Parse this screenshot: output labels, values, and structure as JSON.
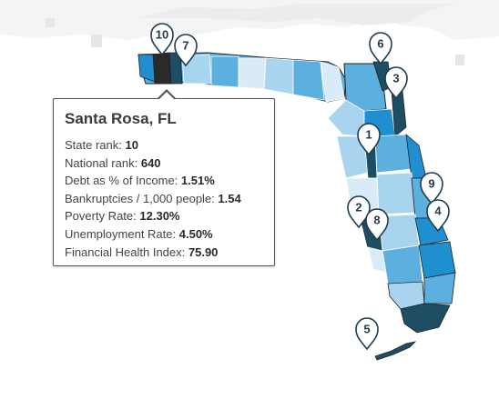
{
  "legend_colors": {
    "lightest": "#d8ebf7",
    "light": "#a9d4ef",
    "medium": "#5cb0e0",
    "dark": "#1f8fd0",
    "darkest": "#1d4e63",
    "black": "#2a2a2a",
    "neighbor_gray": "#ececec",
    "pin_text": "#1f3b4d"
  },
  "pins": [
    {
      "label": "10",
      "icon": "map-pin-icon"
    },
    {
      "label": "7",
      "icon": "map-pin-icon"
    },
    {
      "label": "6",
      "icon": "map-pin-icon"
    },
    {
      "label": "3",
      "icon": "map-pin-icon"
    },
    {
      "label": "1",
      "icon": "map-pin-icon"
    },
    {
      "label": "9",
      "icon": "map-pin-icon"
    },
    {
      "label": "2",
      "icon": "map-pin-icon"
    },
    {
      "label": "8",
      "icon": "map-pin-icon"
    },
    {
      "label": "4",
      "icon": "map-pin-icon"
    },
    {
      "label": "5",
      "icon": "map-pin-icon"
    }
  ],
  "tooltip": {
    "title": "Santa Rosa, FL",
    "rows": [
      {
        "label": "State rank:",
        "value": "10"
      },
      {
        "label": "National rank:",
        "value": "640"
      },
      {
        "label": "Debt as % of Income:",
        "value": "1.51%"
      },
      {
        "label": "Bankruptcies / 1,000 people:",
        "value": "1.54"
      },
      {
        "label": "Poverty Rate:",
        "value": "12.30%"
      },
      {
        "label": "Unemployment Rate:",
        "value": "4.50%"
      },
      {
        "label": "Financial Health Index:",
        "value": "75.90"
      }
    ]
  }
}
